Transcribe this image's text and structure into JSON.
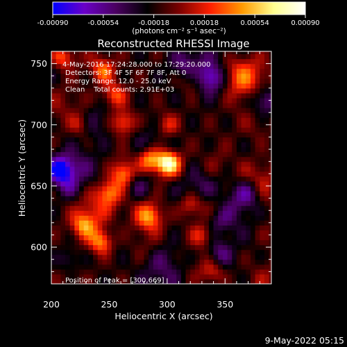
{
  "colorbar": {
    "tick_labels": [
      "-0.00090",
      "-0.00054",
      "-0.00018",
      "0.00018",
      "0.00054",
      "0.00090"
    ],
    "ticks": [
      -0.0009,
      -0.00054,
      -0.00018,
      0.00018,
      0.00054,
      0.0009
    ],
    "range": [
      -0.0009,
      0.0009
    ],
    "unit_line": "(photons cm⁻² s⁻¹ asec⁻²)",
    "colors": [
      "#0000ff",
      "#6a00c8",
      "#4a0060",
      "#000000",
      "#7a0000",
      "#ff2000",
      "#ff9a00",
      "#ffff90",
      "#ffffff"
    ]
  },
  "chart_data": {
    "type": "heatmap",
    "title": "Reconstructed RHESSI Image",
    "xlabel": "Heliocentric X (arcsec)",
    "ylabel": "Heliocentric Y (arcsec)",
    "xlim": [
      200,
      390
    ],
    "ylim": [
      570,
      760
    ],
    "x_ticks": [
      "200",
      "250",
      "300",
      "350"
    ],
    "x_tick_values": [
      200,
      250,
      300,
      350
    ],
    "y_ticks": [
      "600",
      "650",
      "700",
      "750"
    ],
    "y_tick_values": [
      600,
      650,
      700,
      750
    ],
    "peak": [
      300,
      669
    ],
    "hotspots": [
      {
        "x": 300,
        "y": 669,
        "value": 0.0009
      },
      {
        "x": 285,
        "y": 672,
        "value": 0.00068
      },
      {
        "x": 262,
        "y": 660,
        "value": 0.00055
      },
      {
        "x": 250,
        "y": 645,
        "value": 0.0005
      },
      {
        "x": 243,
        "y": 605,
        "value": 0.00062
      },
      {
        "x": 228,
        "y": 618,
        "value": 0.0005
      },
      {
        "x": 262,
        "y": 702,
        "value": 0.00048
      },
      {
        "x": 255,
        "y": 725,
        "value": 0.00044
      },
      {
        "x": 245,
        "y": 745,
        "value": 0.00048
      },
      {
        "x": 320,
        "y": 635,
        "value": 0.00042
      },
      {
        "x": 330,
        "y": 610,
        "value": 0.00035
      },
      {
        "x": 210,
        "y": 755,
        "value": 0.00045
      },
      {
        "x": 285,
        "y": 625,
        "value": 0.0004
      },
      {
        "x": 300,
        "y": 700,
        "value": 0.00036
      },
      {
        "x": 340,
        "y": 580,
        "value": 0.0003
      }
    ],
    "cold_spots": [
      {
        "x": 208,
        "y": 663,
        "value": -0.0009
      },
      {
        "x": 372,
        "y": 645,
        "value": -0.00055
      },
      {
        "x": 345,
        "y": 595,
        "value": -0.0004
      },
      {
        "x": 385,
        "y": 720,
        "value": -0.00045
      }
    ],
    "annotations": [
      "4-May-2016 17:24:28.000 to 17:29:20.000",
      "Detectors: 3F 4F 5F 6F 7F 8F, Att 0",
      "Energy Range: 12.0 - 25.0 keV",
      "Clean    Total counts: 2.91E+03"
    ],
    "peak_label": "Position of Peak = [300,669]"
  },
  "footer": {
    "timestamp": "9-May-2022 05:15"
  }
}
